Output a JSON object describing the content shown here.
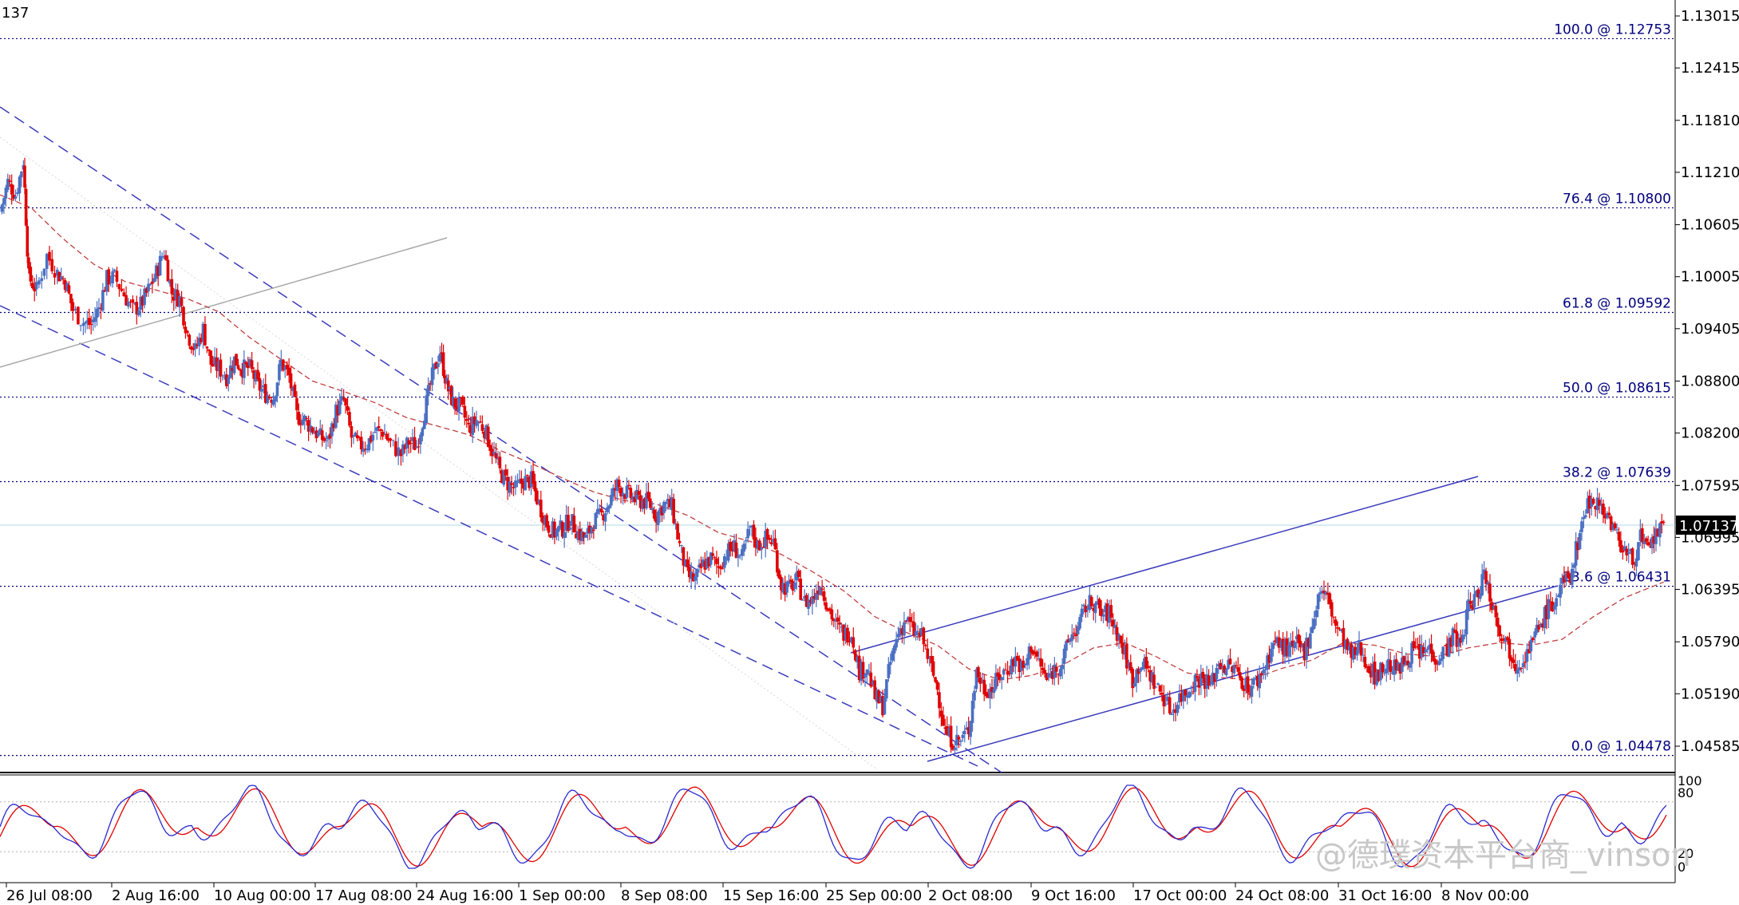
{
  "chart_data": {
    "type": "candlestick",
    "instrument_fragment": "137",
    "current_price": "1.07137",
    "price_axis_ticks": [
      "1.13015",
      "1.12415",
      "1.11810",
      "1.11210",
      "1.10605",
      "1.10005",
      "1.09405",
      "1.08800",
      "1.08200",
      "1.07595",
      "1.06995",
      "1.06395",
      "1.05790",
      "1.05190",
      "1.04585"
    ],
    "time_axis_labels": [
      "26 Jul 08:00",
      "2 Aug 16:00",
      "10 Aug 00:00",
      "17 Aug 08:00",
      "24 Aug 16:00",
      "1 Sep 00:00",
      "8 Sep 08:00",
      "15 Sep 16:00",
      "25 Sep 00:00",
      "2 Oct 08:00",
      "9 Oct 16:00",
      "17 Oct 00:00",
      "24 Oct 08:00",
      "31 Oct 16:00",
      "8 Nov 00:00"
    ],
    "fibonacci_levels": [
      {
        "label": "100.0 @ 1.12753",
        "price": 1.12753
      },
      {
        "label": "76.4 @ 1.10800",
        "price": 1.108
      },
      {
        "label": "61.8 @ 1.09592",
        "price": 1.09592
      },
      {
        "label": "50.0 @ 1.08615",
        "price": 1.08615
      },
      {
        "label": "38.2 @ 1.07639",
        "price": 1.07639
      },
      {
        "label": "23.6 @ 1.06431",
        "price": 1.06431
      },
      {
        "label": "0.0 @ 1.04478",
        "price": 1.04478
      }
    ],
    "close_path": [
      [
        0,
        1.1075
      ],
      [
        15,
        1.111
      ],
      [
        30,
        1.1095
      ],
      [
        45,
        1.1135
      ],
      [
        55,
        1.1
      ],
      [
        70,
        1.0985
      ],
      [
        90,
        1.1025
      ],
      [
        110,
        1.1005
      ],
      [
        125,
        1.0995
      ],
      [
        140,
        1.0962
      ],
      [
        160,
        1.0948
      ],
      [
        175,
        1.0945
      ],
      [
        190,
        1.0965
      ],
      [
        205,
        1.0998
      ],
      [
        220,
        1.1
      ],
      [
        238,
        1.098
      ],
      [
        255,
        1.0962
      ],
      [
        270,
        1.0968
      ],
      [
        285,
        1.0985
      ],
      [
        300,
        1.1005
      ],
      [
        315,
        1.103
      ],
      [
        330,
        1.0982
      ],
      [
        345,
        1.0975
      ],
      [
        360,
        1.0935
      ],
      [
        375,
        1.0915
      ],
      [
        390,
        1.094
      ],
      [
        405,
        1.09
      ],
      [
        420,
        1.0895
      ],
      [
        435,
        1.0885
      ],
      [
        450,
        1.0905
      ],
      [
        465,
        1.0895
      ],
      [
        480,
        1.0895
      ],
      [
        495,
        1.0875
      ],
      [
        510,
        1.0865
      ],
      [
        525,
        1.0862
      ],
      [
        540,
        1.0902
      ],
      [
        555,
        1.0885
      ],
      [
        570,
        1.084
      ],
      [
        585,
        1.0835
      ],
      [
        600,
        1.0825
      ],
      [
        615,
        1.0815
      ],
      [
        630,
        1.081
      ],
      [
        645,
        1.0845
      ],
      [
        660,
        1.0858
      ],
      [
        675,
        1.0815
      ],
      [
        690,
        1.0805
      ],
      [
        705,
        1.0808
      ],
      [
        720,
        1.0822
      ],
      [
        735,
        1.0822
      ],
      [
        750,
        1.0808
      ],
      [
        770,
        1.0795
      ],
      [
        785,
        1.081
      ],
      [
        800,
        1.0805
      ],
      [
        815,
        1.0845
      ],
      [
        830,
        1.0885
      ],
      [
        845,
        1.0915
      ],
      [
        858,
        1.0875
      ],
      [
        870,
        1.0855
      ],
      [
        885,
        1.085
      ],
      [
        900,
        1.0825
      ],
      [
        915,
        1.0835
      ],
      [
        930,
        1.0825
      ],
      [
        945,
        1.08
      ],
      [
        960,
        1.0775
      ],
      [
        975,
        1.0762
      ],
      [
        990,
        1.0755
      ],
      [
        1005,
        1.0765
      ],
      [
        1020,
        1.0765
      ],
      [
        1035,
        1.0738
      ],
      [
        1050,
        1.0715
      ],
      [
        1065,
        1.0705
      ],
      [
        1080,
        1.071
      ],
      [
        1095,
        1.072
      ],
      [
        1110,
        1.0705
      ],
      [
        1125,
        1.0698
      ],
      [
        1140,
        1.0718
      ],
      [
        1155,
        1.0725
      ],
      [
        1170,
        1.074
      ],
      [
        1185,
        1.076
      ],
      [
        1200,
        1.0752
      ],
      [
        1215,
        1.0745
      ],
      [
        1230,
        1.0742
      ],
      [
        1245,
        1.074
      ],
      [
        1260,
        1.0725
      ],
      [
        1275,
        1.0738
      ],
      [
        1290,
        1.0735
      ],
      [
        1305,
        1.069
      ],
      [
        1320,
        1.0655
      ],
      [
        1335,
        1.065
      ],
      [
        1350,
        1.0668
      ],
      [
        1365,
        1.0675
      ],
      [
        1380,
        1.0665
      ],
      [
        1395,
        1.0682
      ],
      [
        1410,
        1.0688
      ],
      [
        1425,
        1.0675
      ],
      [
        1440,
        1.071
      ],
      [
        1455,
        1.069
      ],
      [
        1470,
        1.0698
      ],
      [
        1485,
        1.0695
      ],
      [
        1500,
        1.0645
      ],
      [
        1515,
        1.064
      ],
      [
        1530,
        1.065
      ],
      [
        1545,
        1.0625
      ],
      [
        1560,
        1.0628
      ],
      [
        1575,
        1.0648
      ],
      [
        1590,
        1.062
      ],
      [
        1605,
        1.0598
      ],
      [
        1620,
        1.0588
      ],
      [
        1635,
        1.059
      ],
      [
        1650,
        1.0545
      ],
      [
        1665,
        1.055
      ],
      [
        1680,
        1.0515
      ],
      [
        1695,
        1.0505
      ],
      [
        1710,
        1.0555
      ],
      [
        1725,
        1.059
      ],
      [
        1740,
        1.0605
      ],
      [
        1755,
        1.059
      ],
      [
        1770,
        1.0585
      ],
      [
        1785,
        1.0555
      ],
      [
        1800,
        1.0525
      ],
      [
        1815,
        1.0475
      ],
      [
        1830,
        1.0465
      ],
      [
        1845,
        1.0465
      ],
      [
        1860,
        1.0478
      ],
      [
        1875,
        1.0545
      ],
      [
        1890,
        1.0525
      ],
      [
        1905,
        1.0525
      ],
      [
        1920,
        1.054
      ],
      [
        1935,
        1.0548
      ],
      [
        1950,
        1.056
      ],
      [
        1965,
        1.0545
      ],
      [
        1980,
        1.0575
      ],
      [
        1995,
        1.0555
      ],
      [
        2010,
        1.0535
      ],
      [
        2025,
        1.0548
      ],
      [
        2040,
        1.0555
      ],
      [
        2055,
        1.0585
      ],
      [
        2070,
        1.0595
      ],
      [
        2085,
        1.062
      ],
      [
        2100,
        1.0625
      ],
      [
        2115,
        1.061
      ],
      [
        2130,
        1.0612
      ],
      [
        2145,
        1.059
      ],
      [
        2160,
        1.0565
      ],
      [
        2175,
        1.0535
      ],
      [
        2190,
        1.0555
      ],
      [
        2205,
        1.0545
      ],
      [
        2220,
        1.0528
      ],
      [
        2235,
        1.0515
      ],
      [
        2250,
        1.0498
      ],
      [
        2265,
        1.0515
      ],
      [
        2280,
        1.0522
      ],
      [
        2295,
        1.0535
      ],
      [
        2310,
        1.0538
      ],
      [
        2325,
        1.0528
      ],
      [
        2340,
        1.0555
      ],
      [
        2355,
        1.055
      ],
      [
        2370,
        1.0548
      ],
      [
        2385,
        1.0535
      ],
      [
        2400,
        1.0525
      ],
      [
        2415,
        1.0535
      ],
      [
        2430,
        1.0552
      ],
      [
        2445,
        1.0578
      ],
      [
        2460,
        1.0575
      ],
      [
        2475,
        1.0568
      ],
      [
        2490,
        1.0575
      ],
      [
        2505,
        1.0568
      ],
      [
        2520,
        1.06
      ],
      [
        2535,
        1.064
      ],
      [
        2550,
        1.0628
      ],
      [
        2565,
        1.0598
      ],
      [
        2580,
        1.058
      ],
      [
        2595,
        1.056
      ],
      [
        2610,
        1.0572
      ],
      [
        2625,
        1.0555
      ],
      [
        2640,
        1.054
      ],
      [
        2655,
        1.0548
      ],
      [
        2670,
        1.0552
      ],
      [
        2685,
        1.0545
      ],
      [
        2700,
        1.056
      ],
      [
        2715,
        1.057
      ],
      [
        2730,
        1.0565
      ],
      [
        2745,
        1.0572
      ],
      [
        2760,
        1.056
      ],
      [
        2775,
        1.057
      ],
      [
        2790,
        1.0585
      ],
      [
        2805,
        1.0575
      ],
      [
        2820,
        1.062
      ],
      [
        2835,
        1.063
      ],
      [
        2850,
        1.066
      ],
      [
        2865,
        1.0625
      ],
      [
        2880,
        1.0595
      ],
      [
        2895,
        1.0575
      ],
      [
        2910,
        1.0555
      ],
      [
        2925,
        1.056
      ],
      [
        2940,
        1.0575
      ],
      [
        2955,
        1.0595
      ],
      [
        2970,
        1.0615
      ],
      [
        2985,
        1.0625
      ],
      [
        3000,
        1.0645
      ],
      [
        3015,
        1.0655
      ],
      [
        3030,
        1.0695
      ],
      [
        3045,
        1.0735
      ],
      [
        3060,
        1.0745
      ],
      [
        3075,
        1.0735
      ],
      [
        3090,
        1.0722
      ],
      [
        3105,
        1.07
      ],
      [
        3120,
        1.0685
      ],
      [
        3135,
        1.0672
      ],
      [
        3150,
        1.07
      ],
      [
        3165,
        1.068
      ],
      [
        3180,
        1.0705
      ],
      [
        3195,
        1.071
      ]
    ],
    "moving_average_path": [
      [
        0,
        1.1095
      ],
      [
        60,
        1.108
      ],
      [
        120,
        1.1045
      ],
      [
        180,
        1.1015
      ],
      [
        240,
        1.0995
      ],
      [
        300,
        1.0985
      ],
      [
        360,
        1.0975
      ],
      [
        420,
        1.096
      ],
      [
        480,
        1.093
      ],
      [
        540,
        1.0905
      ],
      [
        600,
        1.088
      ],
      [
        660,
        1.0868
      ],
      [
        720,
        1.0855
      ],
      [
        780,
        1.0838
      ],
      [
        840,
        1.0828
      ],
      [
        900,
        1.0818
      ],
      [
        960,
        1.08
      ],
      [
        1020,
        1.0785
      ],
      [
        1080,
        1.0768
      ],
      [
        1140,
        1.0752
      ],
      [
        1200,
        1.0742
      ],
      [
        1260,
        1.0738
      ],
      [
        1320,
        1.0725
      ],
      [
        1380,
        1.0705
      ],
      [
        1440,
        1.0695
      ],
      [
        1500,
        1.068
      ],
      [
        1560,
        1.066
      ],
      [
        1620,
        1.0638
      ],
      [
        1680,
        1.0608
      ],
      [
        1740,
        1.059
      ],
      [
        1800,
        1.0575
      ],
      [
        1860,
        1.0548
      ],
      [
        1920,
        1.0535
      ],
      [
        1980,
        1.054
      ],
      [
        2040,
        1.0552
      ],
      [
        2100,
        1.0572
      ],
      [
        2160,
        1.0578
      ],
      [
        2220,
        1.0562
      ],
      [
        2280,
        1.0543
      ],
      [
        2340,
        1.0538
      ],
      [
        2400,
        1.0535
      ],
      [
        2460,
        1.0548
      ],
      [
        2520,
        1.0558
      ],
      [
        2580,
        1.0578
      ],
      [
        2640,
        1.0575
      ],
      [
        2700,
        1.0565
      ],
      [
        2760,
        1.0562
      ],
      [
        2820,
        1.0572
      ],
      [
        2880,
        1.0578
      ],
      [
        2940,
        1.0575
      ],
      [
        3000,
        1.0582
      ],
      [
        3060,
        1.0608
      ],
      [
        3120,
        1.063
      ],
      [
        3195,
        1.0648
      ]
    ],
    "oscillator": {
      "levels": [
        "100",
        "80",
        "20",
        "0"
      ],
      "range": [
        0,
        100
      ]
    },
    "colors": {
      "bull": "#4a6fc2",
      "bear": "#e00000",
      "fib": "#00007f",
      "channel": "#3b3bbd",
      "ma": "#c24040",
      "stoch_main": "#2a2ad0",
      "stoch_signal": "#e00000",
      "current_line": "#add8e6"
    }
  },
  "watermark": "@德璞资本平台商_vinson"
}
